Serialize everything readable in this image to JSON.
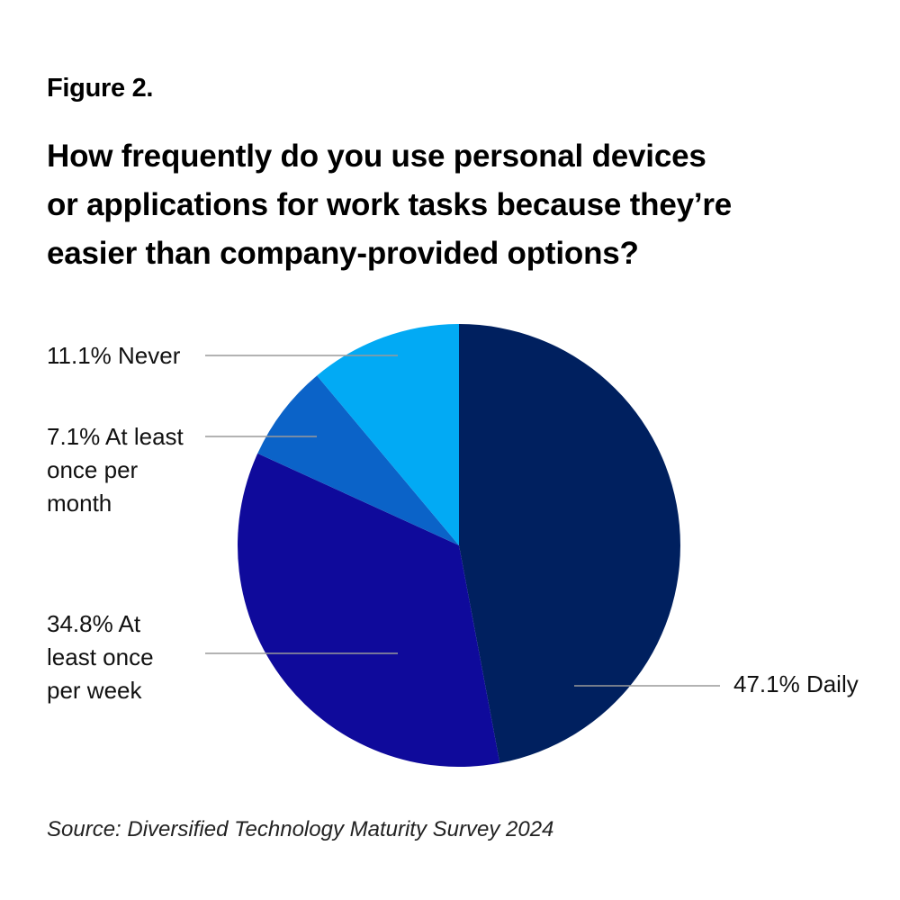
{
  "figure_label": "Figure 2.",
  "title_lines": [
    "How frequently do you use personal devices",
    "or applications for work tasks because they’re",
    "easier than company-provided options?"
  ],
  "source": "Source: Diversified Technology Maturity Survey 2024",
  "chart_data": {
    "type": "pie",
    "title": "How frequently do you use personal devices or applications for work tasks because they’re easier than company-provided options?",
    "start_angle": "top (12 o'clock), clockwise",
    "slices": [
      {
        "label": "Daily",
        "value": 47.1,
        "value_label": "47.1%",
        "color": "#00205f",
        "callout_lines": [
          "47.1% Daily"
        ]
      },
      {
        "label": "At least once per week",
        "value": 34.8,
        "value_label": "34.8%",
        "color": "#0f0a9b",
        "callout_lines": [
          "34.8% At",
          "least once",
          "per week"
        ]
      },
      {
        "label": "At least once per month",
        "value": 7.1,
        "value_label": "7.1%",
        "color": "#0b63c8",
        "callout_lines": [
          "7.1% At least",
          "once per",
          "month"
        ]
      },
      {
        "label": "Never",
        "value": 11.1,
        "value_label": "11.1%",
        "color": "#02aaf4",
        "callout_lines": [
          "11.1% Never"
        ]
      }
    ],
    "leader_line_color": "#9a9a9a"
  }
}
